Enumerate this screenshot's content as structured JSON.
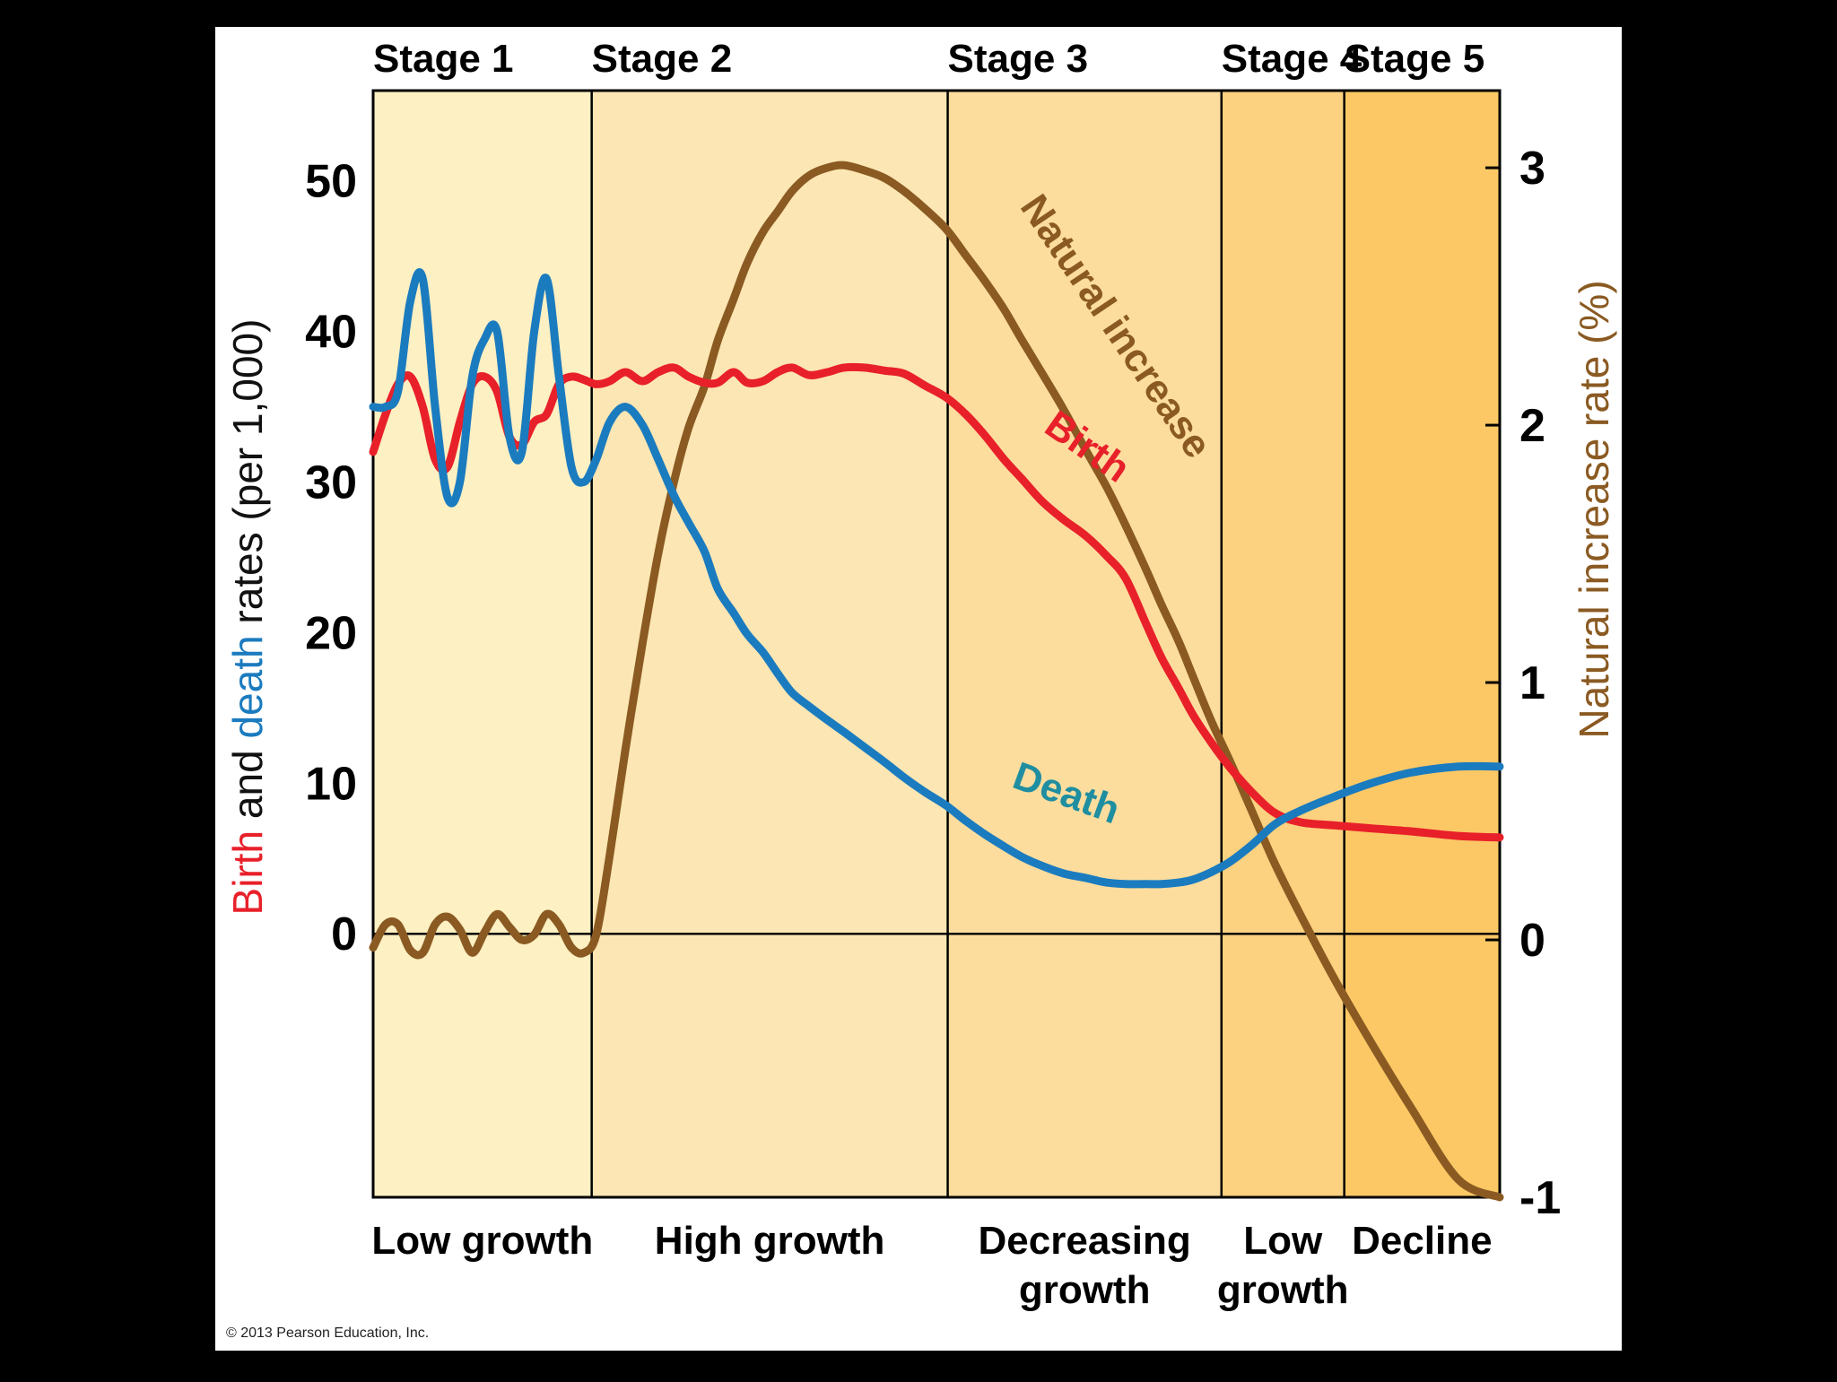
{
  "chart_data": {
    "type": "line",
    "title": "",
    "stages": [
      {
        "title": "Stage 1",
        "phase": [
          "Low growth"
        ],
        "x_range": [
          0,
          19.4
        ]
      },
      {
        "title": "Stage 2",
        "phase": [
          "High growth"
        ],
        "x_range": [
          19.4,
          51
        ]
      },
      {
        "title": "Stage 3",
        "phase": [
          "Decreasing",
          "growth"
        ],
        "x_range": [
          51,
          75.3
        ]
      },
      {
        "title": "Stage 4",
        "phase": [
          "Low",
          "growth"
        ],
        "x_range": [
          75.3,
          86.2
        ]
      },
      {
        "title": "Stage 5",
        "phase": [
          "Decline"
        ],
        "x_range": [
          86.2,
          100
        ]
      }
    ],
    "x_range": [
      0,
      100
    ],
    "left_axis": {
      "label_parts": [
        {
          "text": "Birth",
          "color": "#e8202a"
        },
        {
          "text": " and ",
          "color": "#111111"
        },
        {
          "text": "death",
          "color": "#1b7bbf"
        },
        {
          "text": " rates (per 1,000)",
          "color": "#111111"
        }
      ],
      "ylim": [
        -17.5,
        56
      ],
      "ticks": [
        0,
        10,
        20,
        30,
        40,
        50
      ]
    },
    "right_axis": {
      "label_parts": [
        {
          "text": "Natural increase rate (%)",
          "color": "#8a5a22"
        }
      ],
      "ylim": [
        -1,
        3.3
      ],
      "ticks": [
        -1,
        0,
        1,
        2,
        3
      ]
    },
    "series": [
      {
        "name": "Birth",
        "label": "Birth",
        "axis": "left",
        "color": "#e8202a",
        "label_color": "#e8202a",
        "x": [
          0,
          1.1,
          2.2,
          3.3,
          4.4,
          5.5,
          6.6,
          7.7,
          8.8,
          9.9,
          11,
          12.1,
          13.2,
          14.3,
          15.4,
          16.5,
          17.6,
          18.7,
          19.8,
          21,
          22.4,
          23.9,
          25.3,
          26.7,
          28,
          29.4,
          30.6,
          32,
          33.2,
          34.6,
          35.9,
          37.2,
          38.7,
          40.3,
          41.8,
          43.6,
          45.4,
          47.1,
          49,
          50.9,
          52.6,
          54.3,
          56,
          57.6,
          59.4,
          61.3,
          63.3,
          65.1,
          66.8,
          68.6,
          70,
          71.5,
          72.8,
          74.4,
          76.1,
          78,
          80.1,
          82.4,
          85.3,
          88.6,
          92.1,
          96.3,
          100
        ],
        "y": [
          32,
          34.5,
          36.5,
          37,
          35,
          31.5,
          31,
          34,
          36.5,
          37,
          36,
          33,
          32.5,
          34,
          34.5,
          36.5,
          37,
          36.8,
          36.5,
          36.7,
          37.3,
          36.7,
          37.3,
          37.6,
          37,
          36.6,
          36.6,
          37.3,
          36.6,
          36.7,
          37.3,
          37.6,
          37.1,
          37.3,
          37.6,
          37.6,
          37.4,
          37.2,
          36.4,
          35.6,
          34.5,
          33.1,
          31.5,
          30.2,
          28.7,
          27.5,
          26.4,
          25.1,
          23.6,
          20.6,
          18.3,
          16.3,
          14.5,
          12.7,
          11,
          9.4,
          8,
          7.4,
          7.2,
          7,
          6.8,
          6.5,
          6.4
        ],
        "label_rotation": 35
      },
      {
        "name": "Death",
        "label": "Death",
        "axis": "left",
        "color": "#1b7bbf",
        "label_color": "#1f8ea0",
        "x": [
          0,
          1.1,
          2.2,
          3.3,
          4.4,
          5.5,
          6.6,
          7.7,
          8.8,
          9.9,
          11,
          12.1,
          13.2,
          14.3,
          15.4,
          16.5,
          17.6,
          18.7,
          19.8,
          21,
          22.4,
          23.9,
          25.3,
          26.7,
          28,
          29.4,
          30.6,
          32,
          33.2,
          34.6,
          35.9,
          37.2,
          38.7,
          40.3,
          41.8,
          43.6,
          45.4,
          47.1,
          49,
          50.9,
          52.6,
          54.3,
          56,
          57.6,
          59.4,
          61.3,
          63.3,
          65.1,
          66.8,
          68.6,
          70,
          71.5,
          72.8,
          74.4,
          76.1,
          78,
          80.1,
          82.4,
          85.3,
          88.6,
          92.1,
          96.3,
          100
        ],
        "y": [
          35,
          35,
          36,
          42,
          43.5,
          35,
          29,
          30,
          37,
          39.5,
          40,
          33,
          32,
          40,
          43.5,
          37,
          31,
          30,
          31.5,
          34,
          35,
          33.8,
          31.5,
          29.1,
          27.3,
          25.4,
          22.9,
          21.3,
          19.9,
          18.7,
          17.3,
          16,
          15.1,
          14.2,
          13.4,
          12.4,
          11.4,
          10.4,
          9.4,
          8.5,
          7.5,
          6.6,
          5.8,
          5.1,
          4.5,
          4,
          3.7,
          3.4,
          3.3,
          3.3,
          3.3,
          3.4,
          3.6,
          4.1,
          4.8,
          5.9,
          7.3,
          8.2,
          9.1,
          10,
          10.7,
          11.1,
          11.1
        ],
        "label_rotation": 20
      },
      {
        "name": "Natural increase",
        "label": "Natural increase",
        "axis": "right",
        "color": "#8a5a22",
        "label_color": "#8a5a22",
        "x": [
          0,
          1.1,
          2.2,
          3.3,
          4.4,
          5.5,
          6.6,
          7.7,
          8.8,
          9.9,
          11,
          12.1,
          13.2,
          14.3,
          15.4,
          16.5,
          17.6,
          18.7,
          19.8,
          21,
          22.4,
          23.9,
          25.3,
          26.7,
          28,
          29.4,
          30.6,
          32,
          33.2,
          34.6,
          35.9,
          37.2,
          38.7,
          40.3,
          41.8,
          43.6,
          45.4,
          47.1,
          49,
          50.9,
          52.6,
          54.3,
          56,
          57.6,
          59.4,
          61.3,
          63.3,
          65.1,
          66.8,
          68.6,
          70,
          71.5,
          72.8,
          74.4,
          76.1,
          78,
          80.1,
          82.4,
          85.3,
          88.6,
          92.1,
          96.3,
          100
        ],
        "y": [
          -0.03,
          0.06,
          0.06,
          -0.04,
          -0.05,
          0.06,
          0.09,
          0.04,
          -0.05,
          0.03,
          0.1,
          0.05,
          0,
          0.02,
          0.1,
          0.06,
          -0.03,
          -0.05,
          0.02,
          0.33,
          0.74,
          1.15,
          1.5,
          1.78,
          1.99,
          2.15,
          2.33,
          2.49,
          2.63,
          2.75,
          2.83,
          2.91,
          2.97,
          3,
          3.01,
          2.99,
          2.96,
          2.91,
          2.84,
          2.76,
          2.66,
          2.56,
          2.45,
          2.33,
          2.2,
          2.06,
          1.9,
          1.76,
          1.61,
          1.44,
          1.3,
          1.16,
          1.02,
          0.85,
          0.69,
          0.5,
          0.29,
          0.09,
          -0.15,
          -0.4,
          -0.65,
          -0.93,
          -1
        ],
        "label_rotation": 56
      }
    ]
  },
  "footer": {
    "copyright": "© 2013 Pearson Education, Inc."
  }
}
